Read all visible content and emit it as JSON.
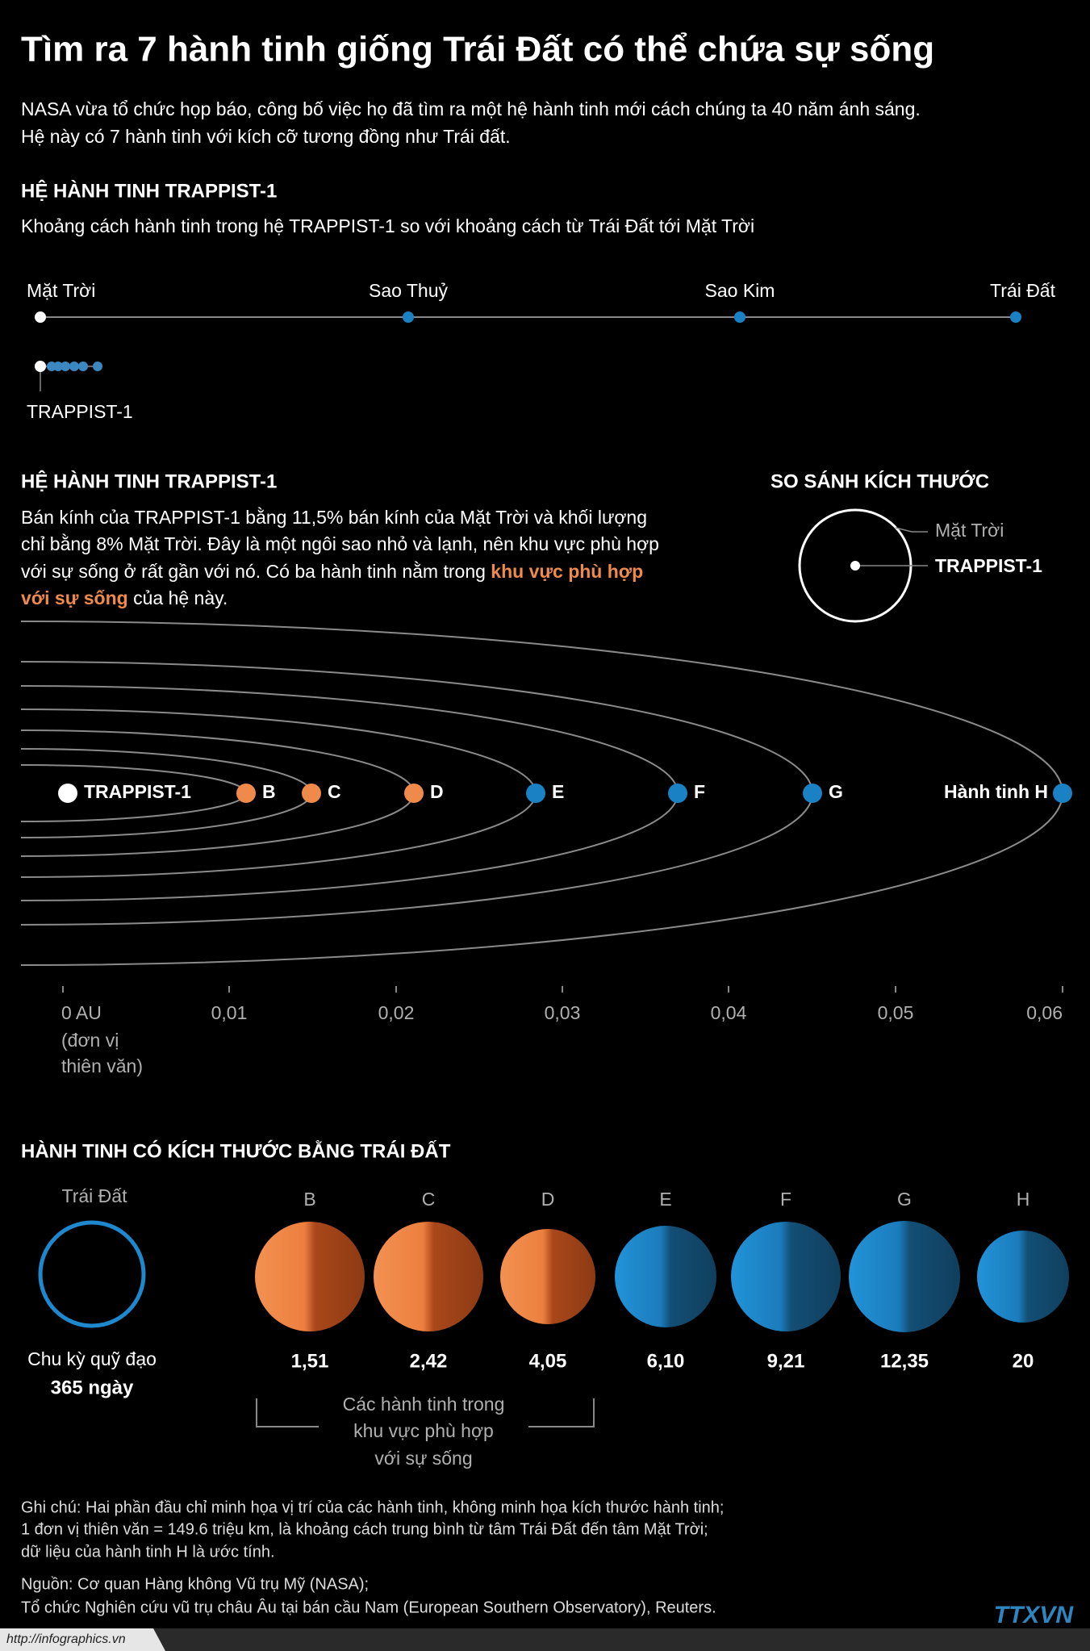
{
  "title": "Tìm ra 7 hành tinh giống Trái Đất có thể chứa sự sống",
  "intro": [
    "NASA vừa tổ chức họp báo, công bố việc họ đã tìm ra một hệ hành tinh mới cách chúng ta 40 năm ánh sáng.",
    "Hệ này có 7 hành tinh với kích cỡ tương đồng như Trái đất."
  ],
  "distance": {
    "heading": "HỆ HÀNH TINH TRAPPIST-1",
    "subtitle": "Khoảng cách hành tinh trong hệ TRAPPIST-1 so với khoảng cách từ Trái Đất tới Mặt Trời",
    "labels": [
      "Mặt Trời",
      "Sao Thuỷ",
      "Sao Kim",
      "Trái Đất"
    ],
    "trappist": "TRAPPIST-1"
  },
  "system": {
    "heading": "HỆ HÀNH TINH TRAPPIST-1",
    "text": [
      "Bán kính của TRAPPIST-1 bằng 11,5% bán kính của Mặt Trời và khối lượng",
      "chỉ bằng 8% Mặt Trời. Đây là một ngôi sao nhỏ và lạnh, nên khu vực phù hợp",
      "với sự sống ở rất gần với nó. Có ba hành tinh nằm trong"
    ],
    "highlight": [
      "khu vực phù hợp",
      "với sự sống"
    ],
    "end": "của hệ này.",
    "size_heading": "SO SÁNH KÍCH THƯỚC",
    "size_labels": [
      "Mặt Trời",
      "TRAPPIST-1"
    ],
    "bodies": [
      "TRAPPIST-1",
      "B",
      "C",
      "D",
      "E",
      "F",
      "G",
      "Hành tinh H"
    ],
    "axis_ticks": [
      "0 AU",
      "0,01",
      "0,02",
      "0,03",
      "0,04",
      "0,05",
      "0,06"
    ],
    "axis_unit": [
      "(đơn vị",
      "thiên văn)"
    ]
  },
  "sizes": {
    "heading": "HÀNH TINH CÓ KÍCH THƯỚC BẰNG TRÁI ĐẤT",
    "earth": "Trái Đất",
    "period_label": "Chu kỳ quỹ đạo",
    "earth_period": "365 ngày",
    "planets": [
      {
        "name": "B",
        "period": "1,51"
      },
      {
        "name": "C",
        "period": "2,42"
      },
      {
        "name": "D",
        "period": "4,05"
      },
      {
        "name": "E",
        "period": "6,10"
      },
      {
        "name": "F",
        "period": "9,21"
      },
      {
        "name": "G",
        "period": "12,35"
      },
      {
        "name": "H",
        "period": "20"
      }
    ],
    "bracket": [
      "Các hành tinh trong",
      "khu vực phù hợp",
      "với sự sống"
    ]
  },
  "notes": [
    "Ghi chú: Hai phần đầu chỉ minh họa vị trí của các hành tinh, không minh họa kích thước hành tinh;",
    "1 đơn vị thiên văn = 149.6 triệu km, là khoảng cách trung bình từ tâm Trái Đất đến tâm Mặt Trời;",
    "dữ liệu của hành tinh H là ước tính."
  ],
  "source": [
    "Nguồn: Cơ quan Hàng không Vũ trụ Mỹ (NASA);",
    "Tổ chức Nghiên cứu vũ trụ châu Âu tại bán cầu Nam (European Southern Observatory), Reuters."
  ],
  "url": "http://infographics.vn",
  "logo": "TTXVN"
}
